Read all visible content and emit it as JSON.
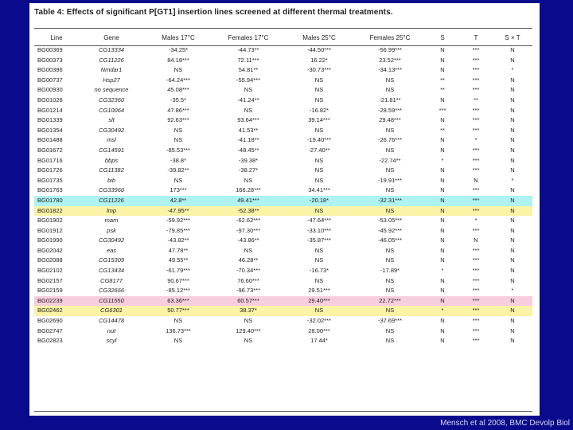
{
  "title": "Table 4: Effects of significant P[GT1] insertion lines screened at different thermal treatments.",
  "columns": [
    "Line",
    "Gene",
    "Males 17°C",
    "Females 17°C",
    "Males 25°C",
    "Females 25°C",
    "S",
    "T",
    "S × T"
  ],
  "rows": [
    {
      "line": "BG00369",
      "gene": "CG13334",
      "m17": "-34.25*",
      "f17": "-44.73**",
      "m25": "-44.50***",
      "f25": "-56.99***",
      "s": "N",
      "t": "***",
      "sxt": "N",
      "hl": ""
    },
    {
      "line": "BG00373",
      "gene": "CG11226",
      "m17": "84.18***",
      "f17": "72.11***",
      "m25": "16.22*",
      "f25": "23.52***",
      "s": "N",
      "t": "***",
      "sxt": "N",
      "hl": ""
    },
    {
      "line": "BG00386",
      "gene": "Nmdar1",
      "m17": "NS",
      "f17": "54.81**",
      "m25": "-30.73***",
      "f25": "-34.13***",
      "s": "N",
      "t": "***",
      "sxt": "*",
      "hl": ""
    },
    {
      "line": "BG00737",
      "gene": "Hsp27",
      "m17": "-64.24***",
      "f17": "-55.94***",
      "m25": "NS",
      "f25": "NS",
      "s": "**",
      "t": "***",
      "sxt": "N",
      "hl": ""
    },
    {
      "line": "BG00930",
      "gene": "no sequence",
      "m17": "45.08***",
      "f17": "NS",
      "m25": "NS",
      "f25": "NS",
      "s": "**",
      "t": "***",
      "sxt": "N",
      "hl": ""
    },
    {
      "line": "BG01028",
      "gene": "CG32360",
      "m17": "-35.5*",
      "f17": "-41.24**",
      "m25": "NS",
      "f25": "-21.81**",
      "s": "N",
      "t": "**",
      "sxt": "N",
      "hl": ""
    },
    {
      "line": "BG01214",
      "gene": "CG10064",
      "m17": "47.86***",
      "f17": "NS",
      "m25": "-16.82*",
      "f25": "-28.59***",
      "s": "***",
      "t": "***",
      "sxt": "N",
      "hl": ""
    },
    {
      "line": "BG01339",
      "gene": "slt",
      "m17": "92.63***",
      "f17": "93.64***",
      "m25": "39.14***",
      "f25": "29.48***",
      "s": "N",
      "t": "***",
      "sxt": "N",
      "hl": ""
    },
    {
      "line": "BG01354",
      "gene": "CG30492",
      "m17": "NS",
      "f17": "41.53**",
      "m25": "NS",
      "f25": "NS",
      "s": "**",
      "t": "***",
      "sxt": "N",
      "hl": ""
    },
    {
      "line": "BG01488",
      "gene": "msl",
      "m17": "NS",
      "f17": "-41.18**",
      "m25": "-19.40***",
      "f25": "-26.76***",
      "s": "N",
      "t": "*",
      "sxt": "N",
      "hl": ""
    },
    {
      "line": "BG01672",
      "gene": "CG14591",
      "m17": "-85.53***",
      "f17": "-48.45**",
      "m25": "-27.40**",
      "f25": "NS",
      "s": "N",
      "t": "***",
      "sxt": "N",
      "hl": ""
    },
    {
      "line": "BG01716",
      "gene": "bbps",
      "m17": "-38.8*",
      "f17": "-39.38*",
      "m25": "NS",
      "f25": "-22.74**",
      "s": "*",
      "t": "***",
      "sxt": "N",
      "hl": ""
    },
    {
      "line": "BG01726",
      "gene": "CG11382",
      "m17": "-39.82**",
      "f17": "-38.27*",
      "m25": "NS",
      "f25": "NS",
      "s": "N",
      "t": "***",
      "sxt": "N",
      "hl": ""
    },
    {
      "line": "BG01735",
      "gene": "bib",
      "m17": "NS",
      "f17": "NS",
      "m25": "NS",
      "f25": "-19.91***",
      "s": "N",
      "t": "N",
      "sxt": "*",
      "hl": ""
    },
    {
      "line": "BG01763",
      "gene": "CG33960",
      "m17": "173***",
      "f17": "166.28***",
      "m25": "34.41***",
      "f25": "NS",
      "s": "N",
      "t": "***",
      "sxt": "N",
      "hl": ""
    },
    {
      "line": "BG01780",
      "gene": "CG11226",
      "m17": "42.8**",
      "f17": "49.41***",
      "m25": "-20.18*",
      "f25": "-32.31***",
      "s": "N",
      "t": "***",
      "sxt": "N",
      "hl": "cyan"
    },
    {
      "line": "BG01822",
      "gene": "lmp",
      "m17": "-47.95**",
      "f17": "-52.38**",
      "m25": "NS",
      "f25": "NS",
      "s": "N",
      "t": "***",
      "sxt": "N",
      "hl": "yellow"
    },
    {
      "line": "BG01902",
      "gene": "mam",
      "m17": "-59.92***",
      "f17": "-62.62***",
      "m25": "-47.64***",
      "f25": "-53.05***",
      "s": "N",
      "t": "*",
      "sxt": "N",
      "hl": ""
    },
    {
      "line": "BG01912",
      "gene": "psk",
      "m17": "-79.85***",
      "f17": "-97.30***",
      "m25": "-33.10***",
      "f25": "-45.92***",
      "s": "N",
      "t": "***",
      "sxt": "N",
      "hl": ""
    },
    {
      "line": "BG01990",
      "gene": "CG30492",
      "m17": "-43.82**",
      "f17": "-43.86**",
      "m25": "-35.87***",
      "f25": "-46.05***",
      "s": "N",
      "t": "N",
      "sxt": "N",
      "hl": ""
    },
    {
      "line": "BG02042",
      "gene": "eas",
      "m17": "47.78**",
      "f17": "NS",
      "m25": "NS",
      "f25": "NS",
      "s": "N",
      "t": "***",
      "sxt": "N",
      "hl": ""
    },
    {
      "line": "BG02088",
      "gene": "CG15309",
      "m17": "49.55**",
      "f17": "46.28**",
      "m25": "NS",
      "f25": "NS",
      "s": "N",
      "t": "***",
      "sxt": "N",
      "hl": ""
    },
    {
      "line": "BG02102",
      "gene": "CG13434",
      "m17": "-61.79***",
      "f17": "-70.34***",
      "m25": "-16.73*",
      "f25": "-17.89*",
      "s": "*",
      "t": "***",
      "sxt": "N",
      "hl": ""
    },
    {
      "line": "BG02157",
      "gene": "CG8177",
      "m17": "90.67***",
      "f17": "76.60***",
      "m25": "NS",
      "f25": "NS",
      "s": "N",
      "t": "***",
      "sxt": "N",
      "hl": ""
    },
    {
      "line": "BG02159",
      "gene": "CG32666",
      "m17": "-85.12***",
      "f17": "-96.73***",
      "m25": "29.51***",
      "f25": "NS",
      "s": "N",
      "t": "***",
      "sxt": "*",
      "hl": ""
    },
    {
      "line": "BG02239",
      "gene": "CG11550",
      "m17": "63.36***",
      "f17": "60.57***",
      "m25": "29.40***",
      "f25": "22.72***",
      "s": "N",
      "t": "***",
      "sxt": "N",
      "hl": "pink"
    },
    {
      "line": "BG02462",
      "gene": "CG6301",
      "m17": "50.77***",
      "f17": "38.37*",
      "m25": "NS",
      "f25": "NS",
      "s": "*",
      "t": "***",
      "sxt": "N",
      "hl": "yellow"
    },
    {
      "line": "BG02690",
      "gene": "CG14478",
      "m17": "NS",
      "f17": "NS",
      "m25": "-32.02***",
      "f25": "-37.69***",
      "s": "N",
      "t": "***",
      "sxt": "N",
      "hl": ""
    },
    {
      "line": "BG02747",
      "gene": "nut",
      "m17": "136.73***",
      "f17": "129.40***",
      "m25": "28.00***",
      "f25": "NS",
      "s": "N",
      "t": "***",
      "sxt": "N",
      "hl": ""
    },
    {
      "line": "BG02823",
      "gene": "scyl",
      "m17": "NS",
      "f17": "NS",
      "m25": "17.44*",
      "f25": "NS",
      "s": "N",
      "t": "***",
      "sxt": "N",
      "hl": ""
    }
  ],
  "credit": "Mensch et al 2008, BMC Devolp Biol",
  "colors": {
    "background": "#0a0a8c",
    "cyan": "#aef2f2",
    "yellow": "#fbf3a6",
    "pink": "#f7cde0"
  }
}
